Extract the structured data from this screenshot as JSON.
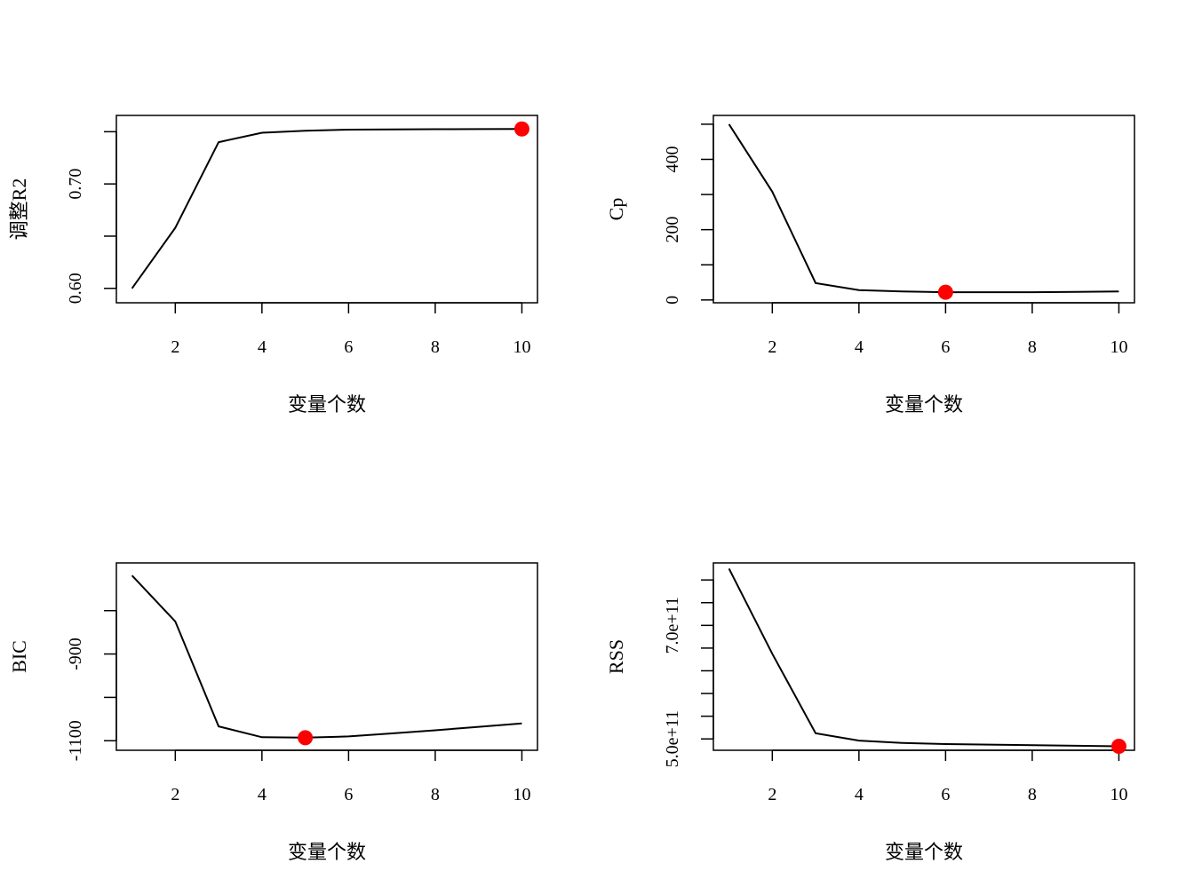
{
  "chart_data": [
    {
      "type": "line",
      "xlabel": "变量个数",
      "ylabel": "调整R2",
      "x": [
        1,
        2,
        3,
        4,
        5,
        6,
        7,
        8,
        9,
        10
      ],
      "values": [
        0.6,
        0.658,
        0.74,
        0.749,
        0.751,
        0.752,
        0.7522,
        0.7524,
        0.7525,
        0.7526
      ],
      "xlim": [
        0.64,
        10.36
      ],
      "ylim": [
        0.5862,
        0.7656
      ],
      "xticks": [
        2,
        4,
        6,
        8,
        10
      ],
      "yticks": [
        0.6,
        0.65,
        0.7,
        0.75
      ],
      "ytick_labels": [
        "0.60",
        "",
        "0.70",
        ""
      ],
      "highlight": {
        "x": 10,
        "y": 0.7526
      },
      "highlight_color": "#ff0000",
      "line_color": "#000000"
    },
    {
      "type": "line",
      "xlabel": "变量个数",
      "ylabel": "Cp",
      "x": [
        1,
        2,
        3,
        4,
        5,
        6,
        7,
        8,
        9,
        10
      ],
      "values": [
        500,
        308,
        48,
        28,
        24,
        22,
        22,
        22,
        23,
        24
      ],
      "xlim": [
        0.64,
        10.36
      ],
      "ylim": [
        -8,
        525
      ],
      "xticks": [
        2,
        4,
        6,
        8,
        10
      ],
      "yticks": [
        0,
        100,
        200,
        300,
        400,
        500
      ],
      "ytick_labels": [
        "0",
        "",
        "200",
        "",
        "400",
        ""
      ],
      "highlight": {
        "x": 6,
        "y": 22
      },
      "highlight_color": "#ff0000",
      "line_color": "#000000"
    },
    {
      "type": "line",
      "xlabel": "变量个数",
      "ylabel": "BIC",
      "x": [
        1,
        2,
        3,
        4,
        5,
        6,
        7,
        8,
        9,
        10
      ],
      "values": [
        -719,
        -825,
        -1067,
        -1092,
        -1093,
        -1090,
        -1083,
        -1076,
        -1068,
        -1060
      ],
      "xlim": [
        0.64,
        10.36
      ],
      "ylim": [
        -1122,
        -690
      ],
      "xticks": [
        2,
        4,
        6,
        8,
        10
      ],
      "yticks": [
        -1100,
        -1000,
        -900,
        -800
      ],
      "ytick_labels": [
        "-1100",
        "",
        "-900",
        ""
      ],
      "highlight": {
        "x": 5,
        "y": -1093
      },
      "highlight_color": "#ff0000",
      "line_color": "#000000"
    },
    {
      "type": "line",
      "xlabel": "变量个数",
      "ylabel": "RSS",
      "x": [
        1,
        2,
        3,
        4,
        5,
        6,
        7,
        8,
        9,
        10
      ],
      "values": [
        800000000000.0,
        650000000000.0,
        510000000000.0,
        497000000000.0,
        493000000000.0,
        491000000000.0,
        490000000000.0,
        489000000000.0,
        488000000000.0,
        487000000000.0
      ],
      "xlim": [
        0.64,
        10.36
      ],
      "ylim": [
        480000000000.0,
        810000000000.0
      ],
      "xticks": [
        2,
        4,
        6,
        8,
        10
      ],
      "yticks": [
        500000000000.0,
        540000000000.0,
        580000000000.0,
        620000000000.0,
        660000000000.0,
        700000000000.0,
        740000000000.0,
        780000000000.0
      ],
      "ytick_labels": [
        "5.0e+11",
        "",
        "",
        "",
        "",
        "7.0e+11",
        "",
        ""
      ],
      "highlight": {
        "x": 10,
        "y": 487000000000.0
      },
      "highlight_color": "#ff0000",
      "line_color": "#000000"
    }
  ]
}
